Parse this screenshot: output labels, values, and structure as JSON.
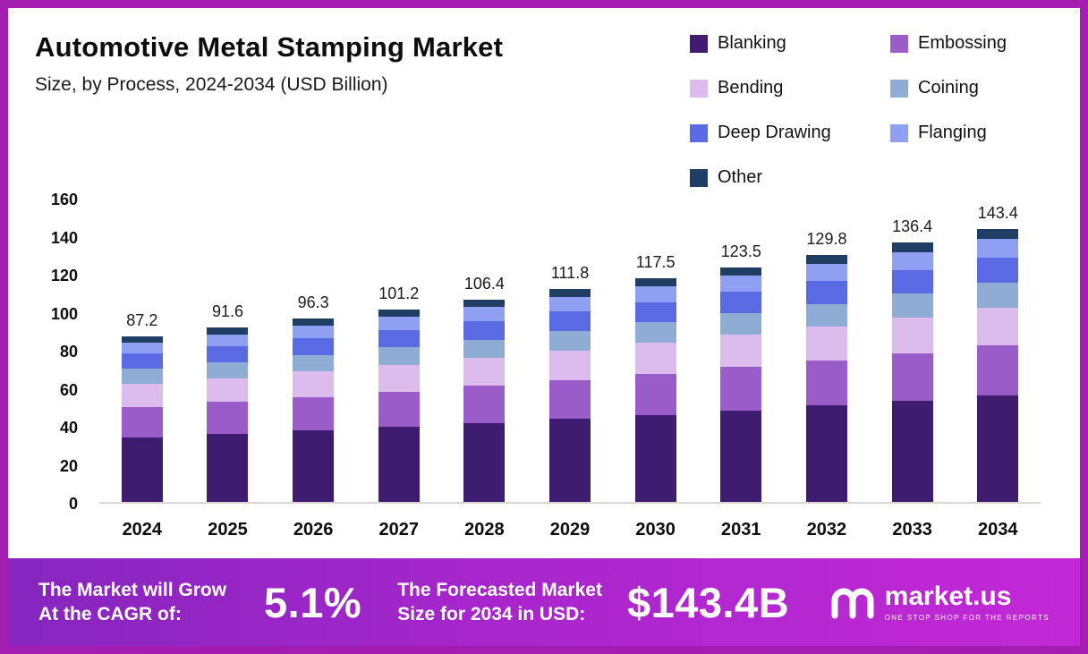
{
  "page": {
    "border_color": "#a21caf",
    "background": "#ffffff"
  },
  "header": {
    "title": "Automotive Metal Stamping Market",
    "subtitle": "Size, by Process, 2024-2034 (USD Billion)"
  },
  "chart_data": {
    "type": "bar",
    "stacked": true,
    "title": "Automotive Metal Stamping Market Size, by Process, 2024-2034 (USD Billion)",
    "xlabel": "",
    "ylabel": "",
    "ylim": [
      0,
      160
    ],
    "yticks": [
      0,
      20,
      40,
      60,
      80,
      100,
      120,
      140,
      160
    ],
    "grid": false,
    "legend_position": "top-right",
    "categories": [
      "2024",
      "2025",
      "2026",
      "2027",
      "2028",
      "2029",
      "2030",
      "2031",
      "2032",
      "2033",
      "2034"
    ],
    "totals": [
      "87.2",
      "91.6",
      "96.3",
      "101.2",
      "106.4",
      "111.8",
      "117.5",
      "123.5",
      "129.8",
      "136.4",
      "143.4"
    ],
    "series": [
      {
        "name": "Blanking",
        "color": "#3e1d70",
        "values": [
          34.0,
          35.7,
          37.5,
          39.5,
          41.5,
          43.6,
          45.8,
          48.2,
          50.6,
          53.2,
          55.9
        ]
      },
      {
        "name": "Embossing",
        "color": "#9a5cc8",
        "values": [
          16.0,
          16.8,
          17.7,
          18.6,
          19.5,
          20.5,
          21.6,
          22.7,
          23.8,
          25.0,
          26.3
        ]
      },
      {
        "name": "Bending",
        "color": "#dbbcec",
        "values": [
          12.0,
          12.6,
          13.3,
          13.9,
          14.6,
          15.4,
          16.2,
          17.0,
          17.9,
          18.8,
          19.7
        ]
      },
      {
        "name": "Coining",
        "color": "#8fadd4",
        "values": [
          8.0,
          8.4,
          8.8,
          9.3,
          9.8,
          10.3,
          10.8,
          11.3,
          11.9,
          12.5,
          13.2
        ]
      },
      {
        "name": "Deep Drawing",
        "color": "#5a6ae3",
        "values": [
          8.0,
          8.4,
          8.8,
          9.3,
          9.8,
          10.3,
          10.8,
          11.3,
          11.9,
          12.5,
          13.2
        ]
      },
      {
        "name": "Flanging",
        "color": "#8fa0f2",
        "values": [
          6.0,
          6.3,
          6.6,
          7.0,
          7.3,
          7.7,
          8.1,
          8.5,
          8.9,
          9.4,
          9.9
        ]
      },
      {
        "name": "Other",
        "color": "#1e3f63",
        "values": [
          3.2,
          3.4,
          3.6,
          3.6,
          3.9,
          4.0,
          4.2,
          4.5,
          4.8,
          5.0,
          5.2
        ]
      }
    ]
  },
  "footer": {
    "cagr_line1": "The Market will Grow",
    "cagr_line2": "At the CAGR of:",
    "cagr_value": "5.1%",
    "forecast_line1": "The Forecasted Market",
    "forecast_line2": "Size for 2034 in USD:",
    "forecast_value": "$143.4B",
    "brand_name": "market.us",
    "brand_tagline": "ONE STOP SHOP FOR THE REPORTS"
  }
}
